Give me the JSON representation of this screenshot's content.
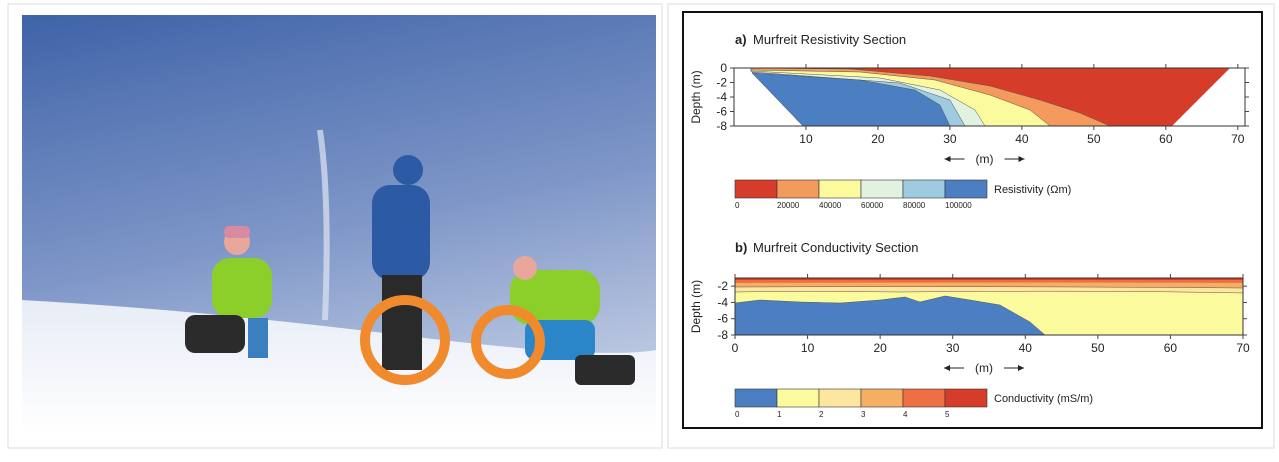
{
  "panels": [
    {
      "letter": "a)",
      "title": "Murfreit Resistivity Section",
      "y_label": "Depth (m)",
      "x_label": "(m)",
      "xlim": [
        0,
        71
      ],
      "xticks": [
        10,
        20,
        30,
        40,
        50,
        60,
        70
      ],
      "ylim": [
        -8,
        0
      ],
      "yticks": [
        0,
        -2,
        -4,
        -6,
        -8
      ],
      "colorbar": {
        "label": "Resistivity (Ωm)",
        "ticks": [
          0,
          20000,
          40000,
          60000,
          80000,
          100000
        ],
        "colors": [
          "#d63c2a",
          "#f39a5c",
          "#fbfa9c",
          "#e2f2e0",
          "#9ecbe0",
          "#4c7fc2"
        ]
      }
    },
    {
      "letter": "b)",
      "title": "Murfreit Conductivity Section",
      "y_label": "Depth (m)",
      "x_label": "(m)",
      "xlim": [
        0,
        70
      ],
      "xticks": [
        0,
        10,
        20,
        30,
        40,
        50,
        60,
        70
      ],
      "ylim": [
        -8,
        -1
      ],
      "yticks": [
        -2,
        -4,
        -6,
        -8
      ],
      "colorbar": {
        "label": "Conductivity (mS/m)",
        "ticks": [
          0,
          1,
          2,
          3,
          4,
          5
        ],
        "colors": [
          "#4c7fc2",
          "#fbfa9c",
          "#fde6a0",
          "#f6ae62",
          "#ef6f45",
          "#d63c2a"
        ]
      }
    }
  ]
}
